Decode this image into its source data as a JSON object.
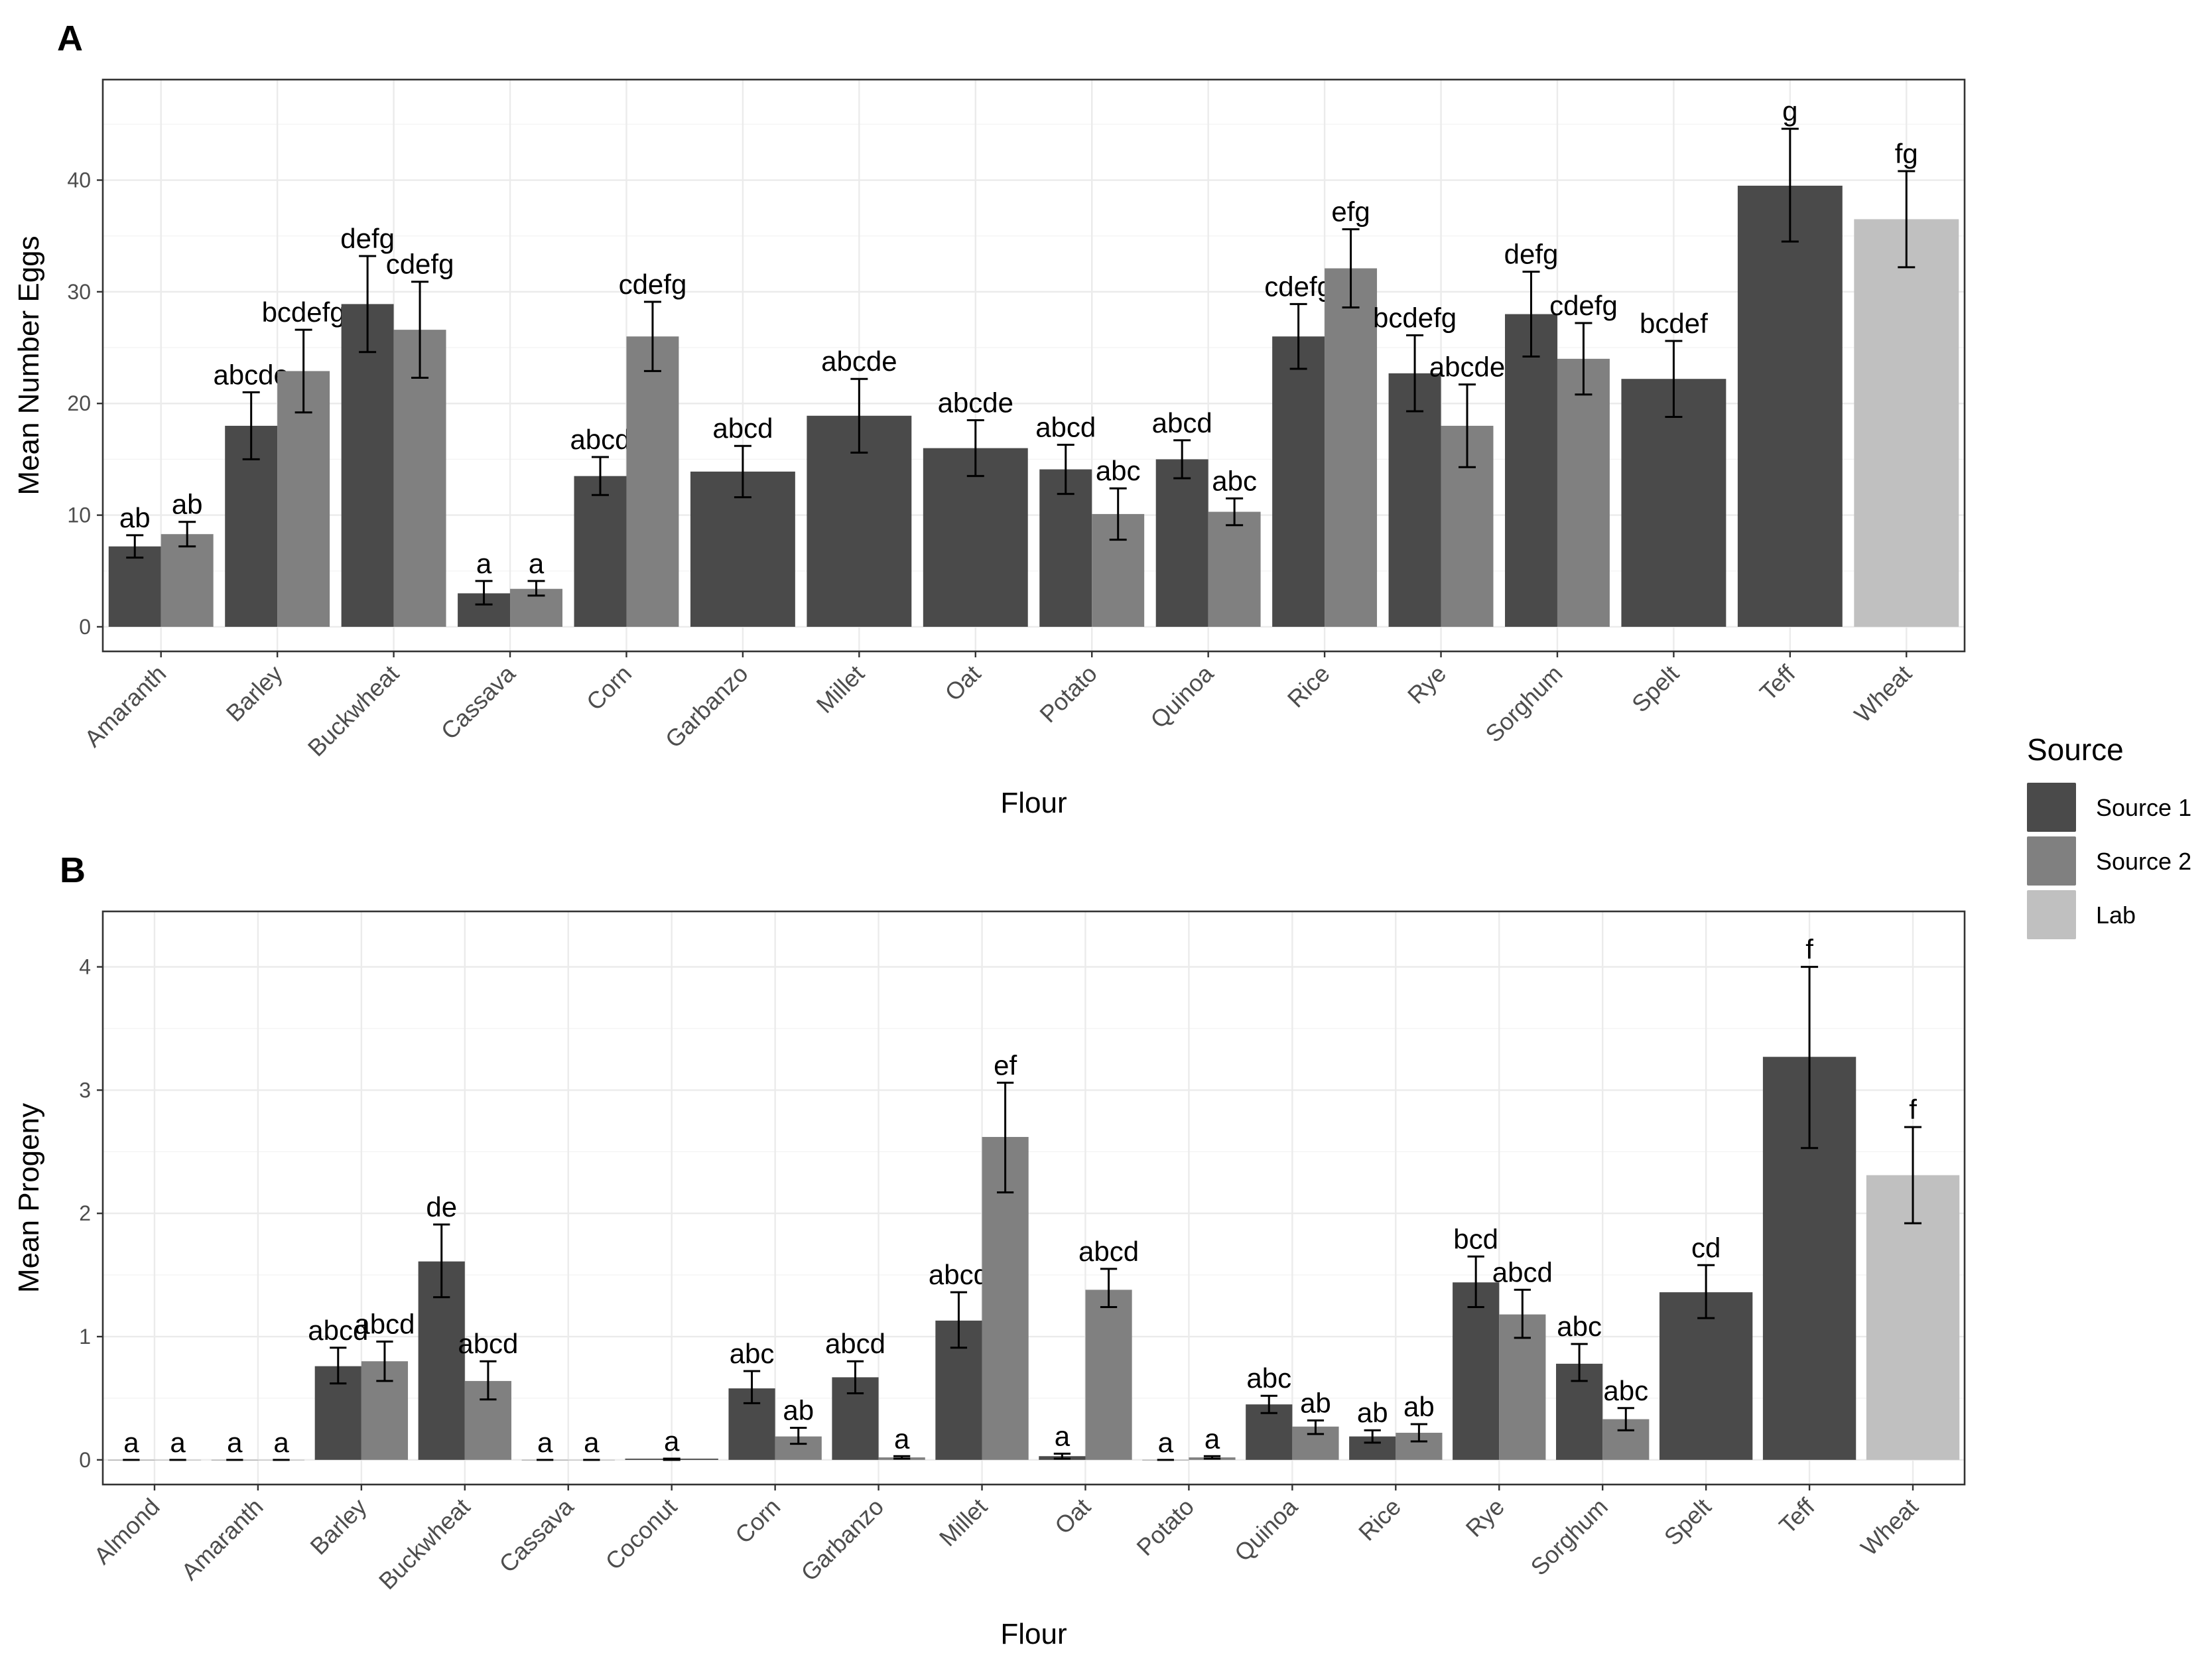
{
  "colors": {
    "source1": "#4a4a4a",
    "source2": "#808080",
    "lab": "#c0c0c0"
  },
  "legend": {
    "title": "Source",
    "items": [
      {
        "label": "Source 1",
        "key": "source1"
      },
      {
        "label": "Source 2",
        "key": "source2"
      },
      {
        "label": "Lab",
        "key": "lab"
      }
    ]
  },
  "chart_data": [
    {
      "panel": "A",
      "type": "bar",
      "xlabel": "Flour",
      "ylabel": "Mean Number Eggs",
      "ylim": [
        -2.2,
        49
      ],
      "yticks": [
        0,
        10,
        20,
        30,
        40
      ],
      "categories": [
        "Amaranth",
        "Barley",
        "Buckwheat",
        "Cassava",
        "Corn",
        "Garbanzo",
        "Millet",
        "Oat",
        "Potato",
        "Quinoa",
        "Rice",
        "Rye",
        "Sorghum",
        "Spelt",
        "Teff",
        "Wheat"
      ],
      "groups": [
        {
          "category": "Amaranth",
          "bars": [
            {
              "source": "source1",
              "value": 7.2,
              "lo": 6.2,
              "hi": 8.2,
              "label": "ab"
            },
            {
              "source": "source2",
              "value": 8.3,
              "lo": 7.2,
              "hi": 9.4,
              "label": "ab"
            }
          ]
        },
        {
          "category": "Barley",
          "bars": [
            {
              "source": "source1",
              "value": 18.0,
              "lo": 15.0,
              "hi": 21.0,
              "label": "abcde"
            },
            {
              "source": "source2",
              "value": 22.9,
              "lo": 19.2,
              "hi": 26.6,
              "label": "bcdefg"
            }
          ]
        },
        {
          "category": "Buckwheat",
          "bars": [
            {
              "source": "source1",
              "value": 28.9,
              "lo": 24.6,
              "hi": 33.2,
              "label": "defg"
            },
            {
              "source": "source2",
              "value": 26.6,
              "lo": 22.3,
              "hi": 30.9,
              "label": "cdefg"
            }
          ]
        },
        {
          "category": "Cassava",
          "bars": [
            {
              "source": "source1",
              "value": 3.0,
              "lo": 2.0,
              "hi": 4.1,
              "label": "a"
            },
            {
              "source": "source2",
              "value": 3.4,
              "lo": 2.8,
              "hi": 4.1,
              "label": "a"
            }
          ]
        },
        {
          "category": "Corn",
          "bars": [
            {
              "source": "source1",
              "value": 13.5,
              "lo": 11.8,
              "hi": 15.2,
              "label": "abcd"
            },
            {
              "source": "source2",
              "value": 26.0,
              "lo": 22.9,
              "hi": 29.1,
              "label": "cdefg"
            }
          ]
        },
        {
          "category": "Garbanzo",
          "bars": [
            {
              "source": "source1",
              "value": 13.9,
              "lo": 11.6,
              "hi": 16.2,
              "label": "abcd"
            }
          ]
        },
        {
          "category": "Millet",
          "bars": [
            {
              "source": "source1",
              "value": 18.9,
              "lo": 15.6,
              "hi": 22.2,
              "label": "abcde"
            }
          ]
        },
        {
          "category": "Oat",
          "bars": [
            {
              "source": "source1",
              "value": 16.0,
              "lo": 13.5,
              "hi": 18.5,
              "label": "abcde"
            }
          ]
        },
        {
          "category": "Potato",
          "bars": [
            {
              "source": "source1",
              "value": 14.1,
              "lo": 11.9,
              "hi": 16.3,
              "label": "abcd"
            },
            {
              "source": "source2",
              "value": 10.1,
              "lo": 7.8,
              "hi": 12.4,
              "label": "abc"
            }
          ]
        },
        {
          "category": "Quinoa",
          "bars": [
            {
              "source": "source1",
              "value": 15.0,
              "lo": 13.3,
              "hi": 16.7,
              "label": "abcd"
            },
            {
              "source": "source2",
              "value": 10.3,
              "lo": 9.1,
              "hi": 11.5,
              "label": "abc"
            }
          ]
        },
        {
          "category": "Rice",
          "bars": [
            {
              "source": "source1",
              "value": 26.0,
              "lo": 23.1,
              "hi": 28.9,
              "label": "cdefg"
            },
            {
              "source": "source2",
              "value": 32.1,
              "lo": 28.6,
              "hi": 35.6,
              "label": "efg"
            }
          ]
        },
        {
          "category": "Rye",
          "bars": [
            {
              "source": "source1",
              "value": 22.7,
              "lo": 19.3,
              "hi": 26.1,
              "label": "bcdefg"
            },
            {
              "source": "source2",
              "value": 18.0,
              "lo": 14.3,
              "hi": 21.7,
              "label": "abcde"
            }
          ]
        },
        {
          "category": "Sorghum",
          "bars": [
            {
              "source": "source1",
              "value": 28.0,
              "lo": 24.2,
              "hi": 31.8,
              "label": "defg"
            },
            {
              "source": "source2",
              "value": 24.0,
              "lo": 20.8,
              "hi": 27.2,
              "label": "cdefg"
            }
          ]
        },
        {
          "category": "Spelt",
          "bars": [
            {
              "source": "source1",
              "value": 22.2,
              "lo": 18.8,
              "hi": 25.6,
              "label": "bcdef"
            }
          ]
        },
        {
          "category": "Teff",
          "bars": [
            {
              "source": "source1",
              "value": 39.5,
              "lo": 34.5,
              "hi": 44.6,
              "label": "g"
            }
          ]
        },
        {
          "category": "Wheat",
          "bars": [
            {
              "source": "lab",
              "value": 36.5,
              "lo": 32.2,
              "hi": 40.8,
              "label": "fg"
            }
          ]
        }
      ]
    },
    {
      "panel": "B",
      "type": "bar",
      "xlabel": "Flour",
      "ylabel": "Mean Progeny",
      "ylim": [
        -0.2,
        4.45
      ],
      "yticks": [
        0,
        1,
        2,
        3,
        4
      ],
      "categories": [
        "Almond",
        "Amaranth",
        "Barley",
        "Buckwheat",
        "Cassava",
        "Coconut",
        "Corn",
        "Garbanzo",
        "Millet",
        "Oat",
        "Potato",
        "Quinoa",
        "Rice",
        "Rye",
        "Sorghum",
        "Spelt",
        "Teff",
        "Wheat"
      ],
      "groups": [
        {
          "category": "Almond",
          "bars": [
            {
              "source": "source1",
              "value": 0.0,
              "lo": 0.0,
              "hi": 0.0,
              "label": "a"
            },
            {
              "source": "source2",
              "value": 0.0,
              "lo": 0.0,
              "hi": 0.0,
              "label": "a"
            }
          ]
        },
        {
          "category": "Amaranth",
          "bars": [
            {
              "source": "source1",
              "value": 0.0,
              "lo": 0.0,
              "hi": 0.0,
              "label": "a"
            },
            {
              "source": "source2",
              "value": 0.0,
              "lo": 0.0,
              "hi": 0.0,
              "label": "a"
            }
          ]
        },
        {
          "category": "Barley",
          "bars": [
            {
              "source": "source1",
              "value": 0.76,
              "lo": 0.62,
              "hi": 0.91,
              "label": "abcd"
            },
            {
              "source": "source2",
              "value": 0.8,
              "lo": 0.64,
              "hi": 0.96,
              "label": "abcd"
            }
          ]
        },
        {
          "category": "Buckwheat",
          "bars": [
            {
              "source": "source1",
              "value": 1.61,
              "lo": 1.32,
              "hi": 1.91,
              "label": "de"
            },
            {
              "source": "source2",
              "value": 0.64,
              "lo": 0.49,
              "hi": 0.8,
              "label": "abcd"
            }
          ]
        },
        {
          "category": "Cassava",
          "bars": [
            {
              "source": "source1",
              "value": 0.0,
              "lo": 0.0,
              "hi": 0.0,
              "label": "a"
            },
            {
              "source": "source2",
              "value": 0.0,
              "lo": 0.0,
              "hi": 0.0,
              "label": "a"
            }
          ]
        },
        {
          "category": "Coconut",
          "bars": [
            {
              "source": "source1",
              "value": 0.01,
              "lo": 0.0,
              "hi": 0.01,
              "label": "a"
            }
          ]
        },
        {
          "category": "Corn",
          "bars": [
            {
              "source": "source1",
              "value": 0.58,
              "lo": 0.46,
              "hi": 0.72,
              "label": "abc"
            },
            {
              "source": "source2",
              "value": 0.19,
              "lo": 0.13,
              "hi": 0.26,
              "label": "ab"
            }
          ]
        },
        {
          "category": "Garbanzo",
          "bars": [
            {
              "source": "source1",
              "value": 0.67,
              "lo": 0.54,
              "hi": 0.8,
              "label": "abcd"
            },
            {
              "source": "source2",
              "value": 0.02,
              "lo": 0.01,
              "hi": 0.03,
              "label": "a"
            }
          ]
        },
        {
          "category": "Millet",
          "bars": [
            {
              "source": "source1",
              "value": 1.13,
              "lo": 0.91,
              "hi": 1.36,
              "label": "abcd"
            },
            {
              "source": "source2",
              "value": 2.62,
              "lo": 2.17,
              "hi": 3.06,
              "label": "ef"
            }
          ]
        },
        {
          "category": "Oat",
          "bars": [
            {
              "source": "source1",
              "value": 0.03,
              "lo": 0.01,
              "hi": 0.05,
              "label": "a"
            },
            {
              "source": "source2",
              "value": 1.38,
              "lo": 1.24,
              "hi": 1.55,
              "label": "abcd"
            }
          ]
        },
        {
          "category": "Potato",
          "bars": [
            {
              "source": "source1",
              "value": 0.0,
              "lo": 0.0,
              "hi": 0.0,
              "label": "a"
            },
            {
              "source": "source2",
              "value": 0.02,
              "lo": 0.01,
              "hi": 0.03,
              "label": "a"
            }
          ]
        },
        {
          "category": "Quinoa",
          "bars": [
            {
              "source": "source1",
              "value": 0.45,
              "lo": 0.38,
              "hi": 0.52,
              "label": "abc"
            },
            {
              "source": "source2",
              "value": 0.27,
              "lo": 0.21,
              "hi": 0.32,
              "label": "ab"
            }
          ]
        },
        {
          "category": "Rice",
          "bars": [
            {
              "source": "source1",
              "value": 0.19,
              "lo": 0.14,
              "hi": 0.24,
              "label": "ab"
            },
            {
              "source": "source2",
              "value": 0.22,
              "lo": 0.15,
              "hi": 0.29,
              "label": "ab"
            }
          ]
        },
        {
          "category": "Rye",
          "bars": [
            {
              "source": "source1",
              "value": 1.44,
              "lo": 1.24,
              "hi": 1.65,
              "label": "bcd"
            },
            {
              "source": "source2",
              "value": 1.18,
              "lo": 0.99,
              "hi": 1.38,
              "label": "abcd"
            }
          ]
        },
        {
          "category": "Sorghum",
          "bars": [
            {
              "source": "source1",
              "value": 0.78,
              "lo": 0.64,
              "hi": 0.94,
              "label": "abc"
            },
            {
              "source": "source2",
              "value": 0.33,
              "lo": 0.24,
              "hi": 0.42,
              "label": "abc"
            }
          ]
        },
        {
          "category": "Spelt",
          "bars": [
            {
              "source": "source1",
              "value": 1.36,
              "lo": 1.15,
              "hi": 1.58,
              "label": "cd"
            }
          ]
        },
        {
          "category": "Teff",
          "bars": [
            {
              "source": "source1",
              "value": 3.27,
              "lo": 2.53,
              "hi": 4.0,
              "label": "f"
            }
          ]
        },
        {
          "category": "Wheat",
          "bars": [
            {
              "source": "lab",
              "value": 2.31,
              "lo": 1.92,
              "hi": 2.7,
              "label": "f"
            }
          ]
        }
      ]
    }
  ]
}
